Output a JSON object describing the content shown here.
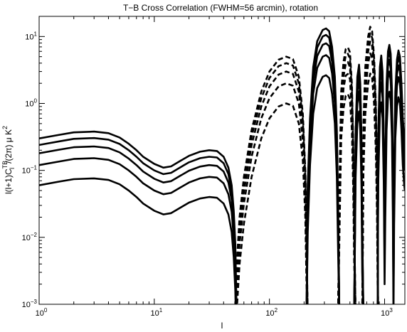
{
  "chart_data": {
    "type": "line",
    "title": "T−B Cross Correlation (FWHM=56 arcmin), rotation",
    "xlabel": "l",
    "ylabel": {
      "base": "l(l+1)C",
      "sub": "l",
      "sup": "TB",
      "tail": "/(2π) μ K",
      "tail_sup": "2"
    },
    "x_scale": "log",
    "y_scale": "log",
    "xlim": [
      1,
      1500
    ],
    "ylim": [
      0.001,
      20
    ],
    "x_ticks": [
      {
        "value": 1,
        "mantissa": "10",
        "exp": "0"
      },
      {
        "value": 10,
        "mantissa": "10",
        "exp": "1"
      },
      {
        "value": 100,
        "mantissa": "10",
        "exp": "2"
      },
      {
        "value": 1000,
        "mantissa": "10",
        "exp": "3"
      }
    ],
    "y_ticks": [
      {
        "value": 0.001,
        "mantissa": "10",
        "exp": "−3"
      },
      {
        "value": 0.01,
        "mantissa": "10",
        "exp": "−2"
      },
      {
        "value": 0.1,
        "mantissa": "10",
        "exp": "−1"
      },
      {
        "value": 1,
        "mantissa": "10",
        "exp": "0"
      },
      {
        "value": 10,
        "mantissa": "10",
        "exp": "1"
      }
    ],
    "series_scales": [
      1.0,
      0.8,
      0.6,
      0.4,
      0.2
    ],
    "base_curve": {
      "note_sign": "solid where positive, dashed where negative",
      "points": [
        [
          1,
          0.3
        ],
        [
          1.5,
          0.34
        ],
        [
          2,
          0.37
        ],
        [
          3,
          0.38
        ],
        [
          4,
          0.36
        ],
        [
          5,
          0.31
        ],
        [
          6,
          0.25
        ],
        [
          7,
          0.2
        ],
        [
          8,
          0.16
        ],
        [
          10,
          0.125
        ],
        [
          12,
          0.11
        ],
        [
          14,
          0.115
        ],
        [
          17,
          0.14
        ],
        [
          20,
          0.165
        ],
        [
          25,
          0.19
        ],
        [
          30,
          0.2
        ],
        [
          35,
          0.195
        ],
        [
          40,
          0.16
        ],
        [
          44,
          0.11
        ],
        [
          47,
          0.06
        ],
        [
          49,
          0.025
        ],
        [
          50.5,
          0.008
        ],
        [
          51.2,
          0.0025
        ],
        [
          52,
          -0.004
        ],
        [
          55,
          -0.02
        ],
        [
          60,
          -0.08
        ],
        [
          70,
          -0.4
        ],
        [
          85,
          -1.5
        ],
        [
          100,
          -3.0
        ],
        [
          120,
          -4.5
        ],
        [
          140,
          -5.0
        ],
        [
          160,
          -4.6
        ],
        [
          180,
          -2.5
        ],
        [
          195,
          -0.7
        ],
        [
          205,
          -0.1
        ],
        [
          210,
          -0.01
        ],
        [
          215,
          0.06
        ],
        [
          225,
          0.6
        ],
        [
          240,
          3.5
        ],
        [
          260,
          8.5
        ],
        [
          290,
          12.5
        ],
        [
          310,
          13.2
        ],
        [
          330,
          12.0
        ],
        [
          350,
          7.0
        ],
        [
          370,
          2.5
        ],
        [
          385,
          0.4
        ],
        [
          395,
          0.03
        ],
        [
          405,
          -0.05
        ],
        [
          420,
          -1.5
        ],
        [
          440,
          -4.2
        ],
        [
          460,
          -6.5
        ],
        [
          480,
          -6.9
        ],
        [
          500,
          -5.8
        ],
        [
          520,
          -2.0
        ],
        [
          535,
          -0.25
        ],
        [
          545,
          -0.02
        ],
        [
          560,
          0.4
        ],
        [
          580,
          2.5
        ],
        [
          600,
          3.8
        ],
        [
          615,
          2.0
        ],
        [
          630,
          0.3
        ],
        [
          640,
          0.015
        ],
        [
          655,
          -0.5
        ],
        [
          680,
          -3.5
        ],
        [
          720,
          -10
        ],
        [
          750,
          -14
        ],
        [
          780,
          -12
        ],
        [
          810,
          -5
        ],
        [
          840,
          -1
        ],
        [
          860,
          -0.1
        ],
        [
          870,
          -0.01
        ],
        [
          880,
          0.3
        ],
        [
          910,
          3.5
        ],
        [
          935,
          5.2
        ],
        [
          960,
          3.0
        ],
        [
          985,
          0.3
        ],
        [
          1000,
          0.01
        ],
        [
          1015,
          0.1
        ],
        [
          1040,
          2.0
        ],
        [
          1070,
          6.0
        ],
        [
          1100,
          7.5
        ],
        [
          1130,
          5.5
        ],
        [
          1160,
          1.5
        ],
        [
          1180,
          0.12
        ],
        [
          1195,
          0.003
        ],
        [
          1210,
          0.08
        ],
        [
          1240,
          1.5
        ],
        [
          1280,
          4.5
        ],
        [
          1320,
          6.2
        ],
        [
          1360,
          5.0
        ],
        [
          1400,
          2.0
        ],
        [
          1440,
          0.6
        ],
        [
          1480,
          0.3
        ],
        [
          1500,
          0.25
        ]
      ]
    },
    "line_color": "#000000",
    "grid": false,
    "legend": "none"
  }
}
